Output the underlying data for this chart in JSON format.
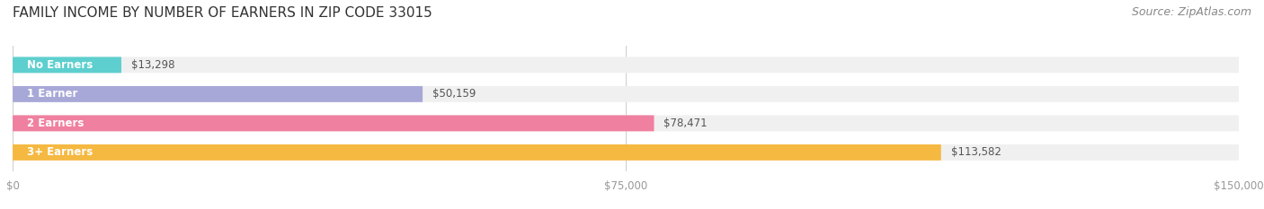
{
  "title": "FAMILY INCOME BY NUMBER OF EARNERS IN ZIP CODE 33015",
  "source": "Source: ZipAtlas.com",
  "categories": [
    "No Earners",
    "1 Earner",
    "2 Earners",
    "3+ Earners"
  ],
  "values": [
    13298,
    50159,
    78471,
    113582
  ],
  "bar_colors": [
    "#5ecfcf",
    "#a8a8d8",
    "#f080a0",
    "#f5b942"
  ],
  "label_colors": [
    "#5ecfcf",
    "#a8a8d8",
    "#f080a0",
    "#f5b942"
  ],
  "bg_bar_color": "#f0f0f0",
  "xlim": [
    0,
    150000
  ],
  "xticks": [
    0,
    75000,
    150000
  ],
  "xtick_labels": [
    "$0",
    "$75,000",
    "$150,000"
  ],
  "value_labels": [
    "$13,298",
    "$50,159",
    "$78,471",
    "$113,582"
  ],
  "title_fontsize": 11,
  "source_fontsize": 9,
  "bar_height": 0.55,
  "figsize": [
    14.06,
    2.33
  ],
  "dpi": 100
}
